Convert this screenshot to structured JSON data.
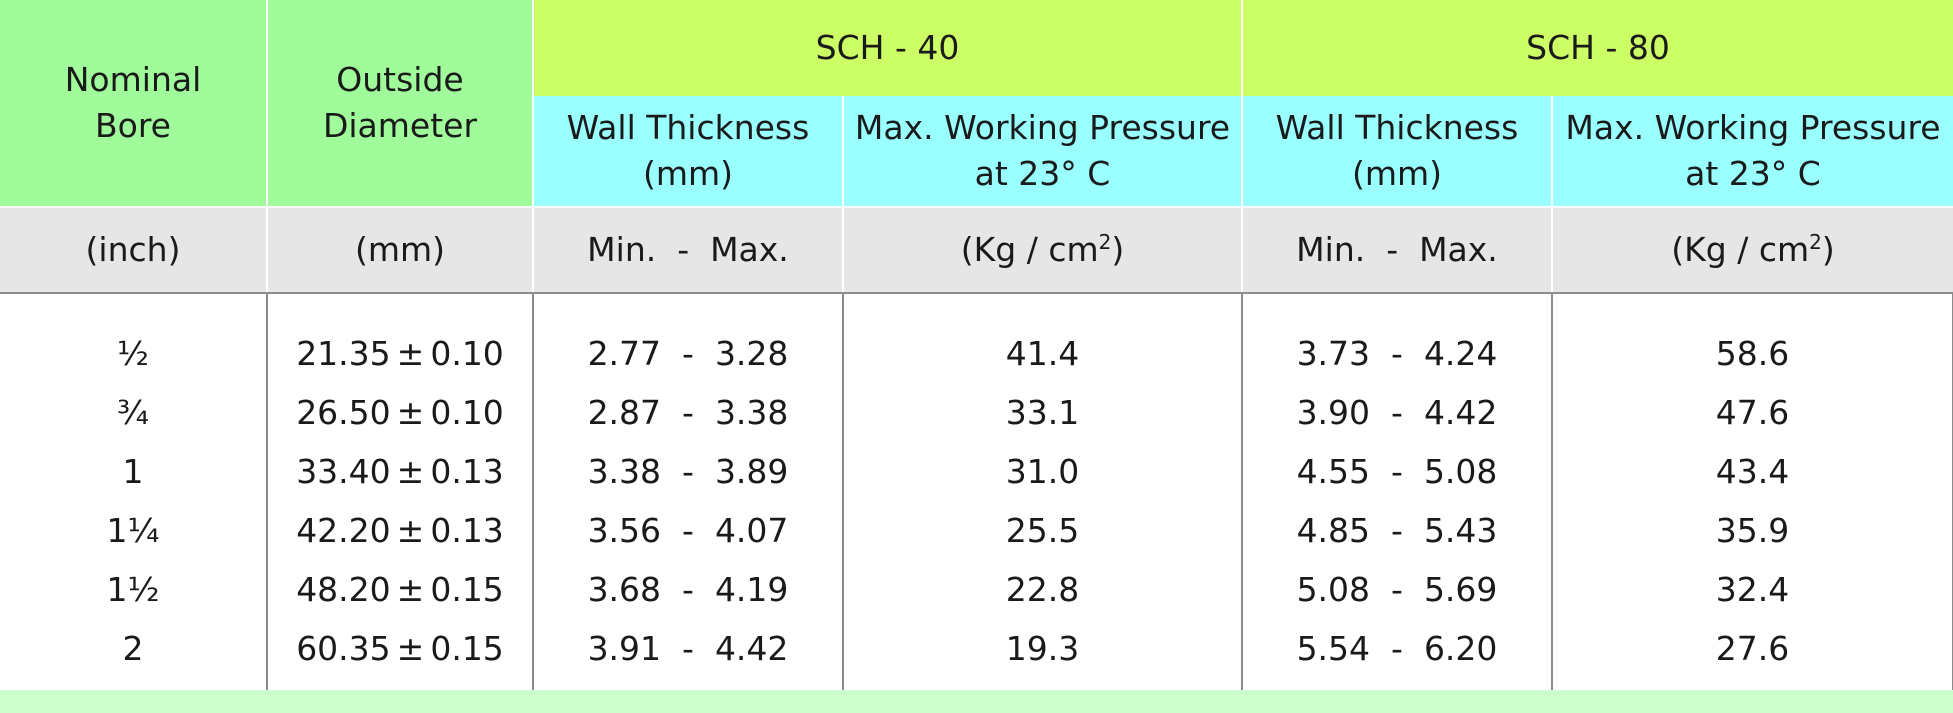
{
  "header": {
    "nominal_bore": [
      "Nominal",
      "Bore"
    ],
    "outside_diameter": [
      "Outside",
      "Diameter"
    ],
    "sch40": "SCH - 40",
    "sch80": "SCH - 80",
    "wall_thickness": [
      "Wall Thickness",
      "(mm)"
    ],
    "max_pressure": [
      "Max. Working Pressure",
      "at 23° C"
    ]
  },
  "units": {
    "bore": "(inch)",
    "diameter": "(mm)",
    "range": "Min.  -  Max.",
    "pressure_prefix": "(Kg / cm",
    "pressure_sup": "2",
    "pressure_suffix": ")"
  },
  "rows": [
    {
      "bore": "½",
      "od": "21.35",
      "tol": "0.10",
      "s40_min": "2.77",
      "s40_max": "3.28",
      "s40_p": "41.4",
      "s80_min": "3.73",
      "s80_max": "4.24",
      "s80_p": "58.6"
    },
    {
      "bore": "¾",
      "od": "26.50",
      "tol": "0.10",
      "s40_min": "2.87",
      "s40_max": "3.38",
      "s40_p": "33.1",
      "s80_min": "3.90",
      "s80_max": "4.42",
      "s80_p": "47.6"
    },
    {
      "bore": "1",
      "od": "33.40",
      "tol": "0.13",
      "s40_min": "3.38",
      "s40_max": "3.89",
      "s40_p": "31.0",
      "s80_min": "4.55",
      "s80_max": "5.08",
      "s80_p": "43.4"
    },
    {
      "bore": "1¼",
      "od": "42.20",
      "tol": "0.13",
      "s40_min": "3.56",
      "s40_max": "4.07",
      "s40_p": "25.5",
      "s80_min": "4.85",
      "s80_max": "5.43",
      "s80_p": "35.9"
    },
    {
      "bore": "1½",
      "od": "48.20",
      "tol": "0.15",
      "s40_min": "3.68",
      "s40_max": "4.19",
      "s40_p": "22.8",
      "s80_min": "5.08",
      "s80_max": "5.69",
      "s80_p": "32.4"
    },
    {
      "bore": "2",
      "od": "60.35",
      "tol": "0.15",
      "s40_min": "3.91",
      "s40_max": "4.42",
      "s40_p": "19.3",
      "s80_min": "5.54",
      "s80_max": "6.20",
      "s80_p": "27.6"
    }
  ],
  "symbols": {
    "plus_minus": "±",
    "dash": "-"
  },
  "colors": {
    "left_header": "#a0fb9a",
    "schedule_header": "#ccff66",
    "sub_header": "#99ffff",
    "units_row": "#e6e6e6",
    "bottom_strip": "#ccffcc"
  }
}
